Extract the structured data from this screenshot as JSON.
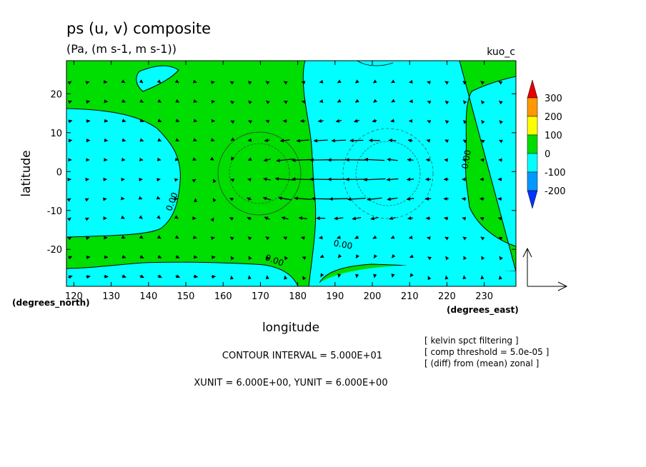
{
  "chart_data": {
    "type": "contour",
    "title": "ps (u, v) composite",
    "subtitle": "(Pa, (m s-1, m s-1))",
    "case_label": "kuo_c",
    "xlabel": "longitude",
    "ylabel": "latitude",
    "x_unit_label": "(degrees_east)",
    "y_unit_label": "(degrees_north)",
    "xlim": [
      118,
      238.5
    ],
    "ylim": [
      -29.5,
      28.5
    ],
    "x_ticks": [
      120,
      130,
      140,
      150,
      160,
      170,
      180,
      190,
      200,
      210,
      220,
      230
    ],
    "y_ticks": [
      -20,
      -10,
      0,
      10,
      20
    ],
    "colorbar": {
      "levels": [
        "300",
        "200",
        "100",
        "0",
        "-100",
        "-200"
      ],
      "colors": [
        "#e60000",
        "#ff9900",
        "#ffff00",
        "#00dd00",
        "#00ffff",
        "#0099ff",
        "#0033ff"
      ]
    },
    "contour_labels": [
      {
        "text": "0.00",
        "x": 147,
        "y": -8,
        "rotate": -70
      },
      {
        "text": "0.00",
        "x": 173.5,
        "y": -23.5,
        "rotate": 20
      },
      {
        "text": "0.00",
        "x": 192,
        "y": -19.5,
        "rotate": 10
      },
      {
        "text": "0.00",
        "x": 226,
        "y": 3,
        "rotate": -80
      }
    ],
    "notes": [
      "[ kelvin spct filtering ]",
      "[ comp threshold = 5.0e-05 ]",
      "[ (diff) from (mean) zonal ]"
    ],
    "contour_interval": "CONTOUR INTERVAL = 5.000E+01",
    "units_line": "XUNIT = 6.000E+00, YUNIT = 6.000E+00"
  }
}
